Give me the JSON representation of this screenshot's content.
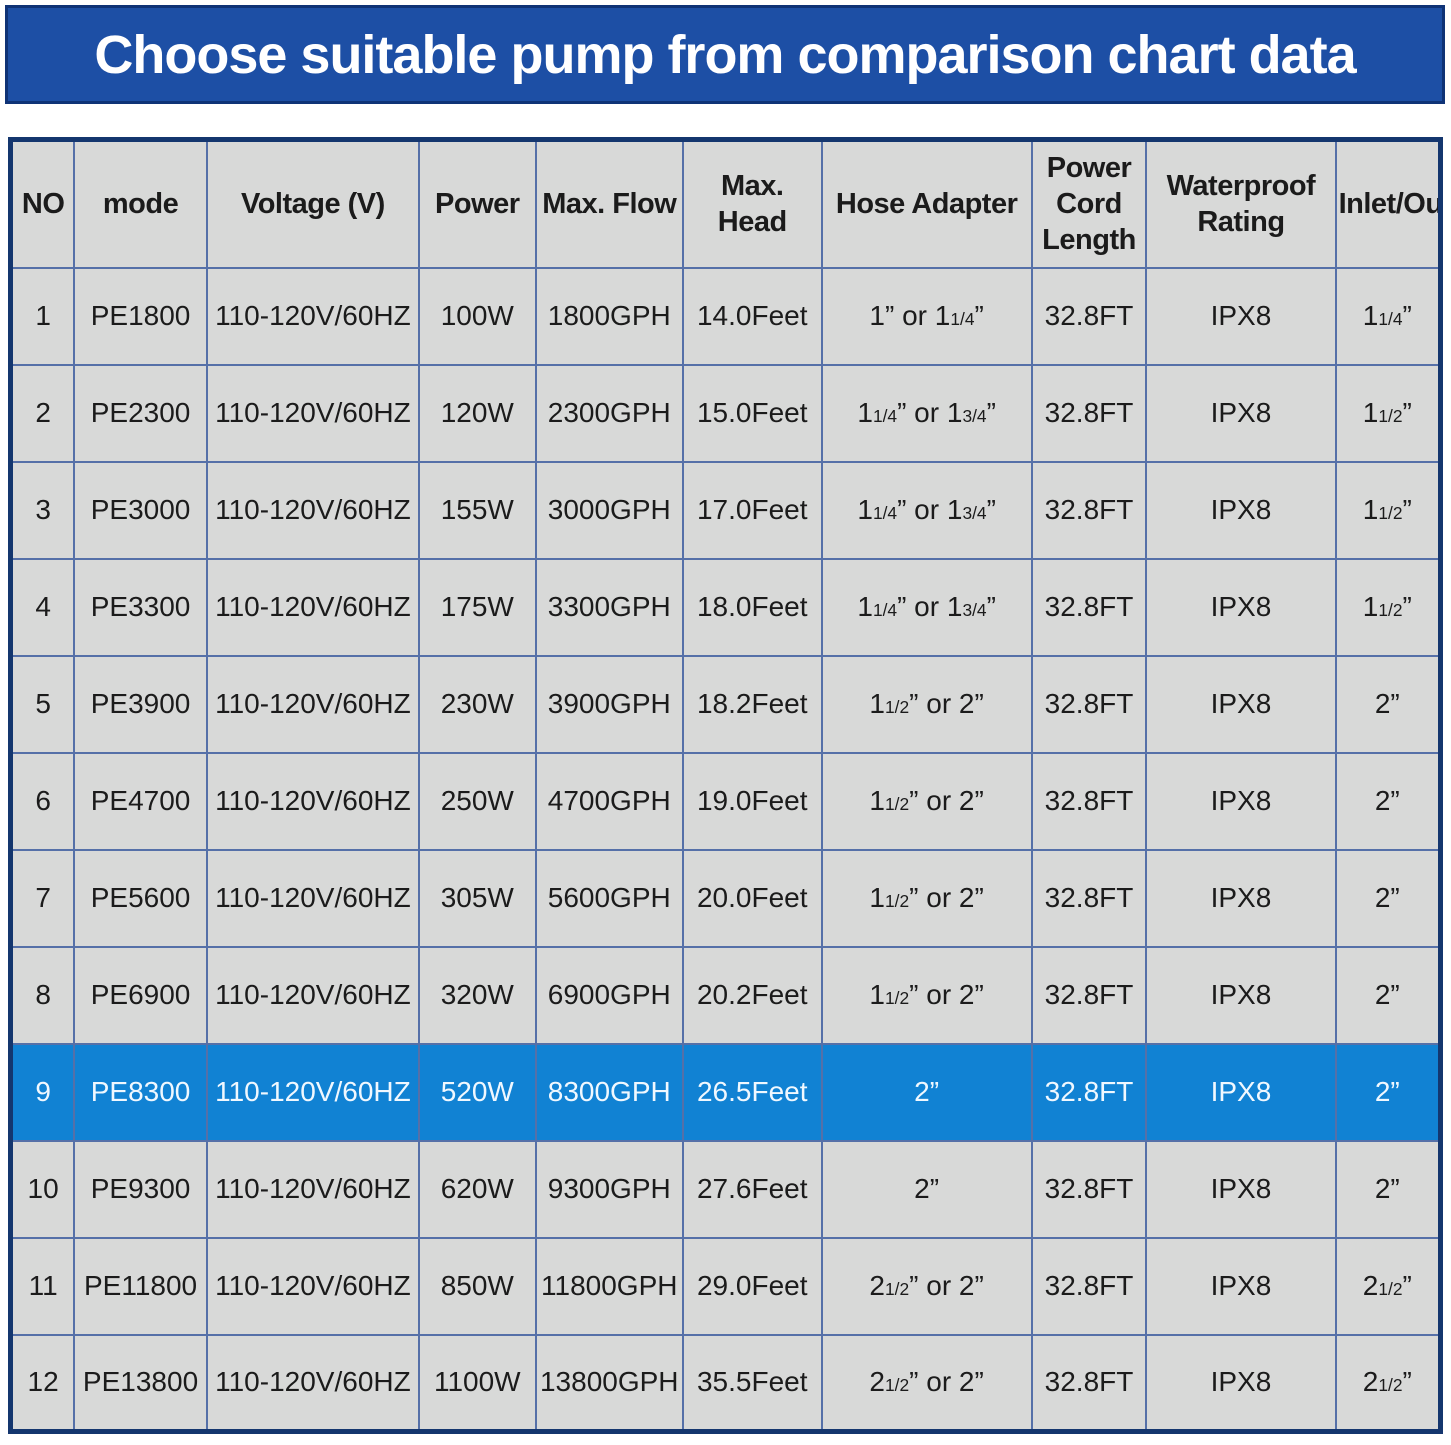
{
  "colors": {
    "page_bg": "#ffffff",
    "banner_bg": "#1d4fa5",
    "banner_border": "#0f3376",
    "banner_text": "#ffffff",
    "table_outer_border": "#14366e",
    "grid_line": "#5570a8",
    "cell_bg": "#d8d9d8",
    "cell_text": "#1b1b1b",
    "highlight_bg": "#1182d3",
    "highlight_text": "#f0f8ff"
  },
  "chart_data": {
    "type": "table",
    "title": "Choose suitable pump from comparison chart data",
    "columns": [
      "NO",
      "mode",
      "Voltage (V)",
      "Power",
      "Max. Flow",
      "Max. Head",
      "Hose Adapter",
      "Power Cord Length",
      "Waterproof Rating",
      "Inlet/Outlet"
    ],
    "column_keys": [
      "no",
      "mode",
      "voltage",
      "power",
      "max_flow",
      "max_head",
      "hose_adapter",
      "power_cord_length",
      "waterproof_rating",
      "inlet_outlet"
    ],
    "column_widths_pct": [
      4.46,
      9.27,
      14.84,
      8.15,
      10.31,
      9.69,
      14.7,
      8.01,
      13.24,
      7.33
    ],
    "rows": [
      [
        "1",
        "PE1800",
        "110-120V/60HZ",
        "100W",
        "1800GPH",
        "14.0Feet",
        "1” or 11/4”",
        "32.8FT",
        "IPX8",
        "11/4”"
      ],
      [
        "2",
        "PE2300",
        "110-120V/60HZ",
        "120W",
        "2300GPH",
        "15.0Feet",
        "11/4” or 13/4”",
        "32.8FT",
        "IPX8",
        "11/2”"
      ],
      [
        "3",
        "PE3000",
        "110-120V/60HZ",
        "155W",
        "3000GPH",
        "17.0Feet",
        "11/4” or 13/4”",
        "32.8FT",
        "IPX8",
        "11/2”"
      ],
      [
        "4",
        "PE3300",
        "110-120V/60HZ",
        "175W",
        "3300GPH",
        "18.0Feet",
        "11/4” or 13/4”",
        "32.8FT",
        "IPX8",
        "11/2”"
      ],
      [
        "5",
        "PE3900",
        "110-120V/60HZ",
        "230W",
        "3900GPH",
        "18.2Feet",
        "11/2” or 2”",
        "32.8FT",
        "IPX8",
        "2”"
      ],
      [
        "6",
        "PE4700",
        "110-120V/60HZ",
        "250W",
        "4700GPH",
        "19.0Feet",
        "11/2” or 2”",
        "32.8FT",
        "IPX8",
        "2”"
      ],
      [
        "7",
        "PE5600",
        "110-120V/60HZ",
        "305W",
        "5600GPH",
        "20.0Feet",
        "11/2” or 2”",
        "32.8FT",
        "IPX8",
        "2”"
      ],
      [
        "8",
        "PE6900",
        "110-120V/60HZ",
        "320W",
        "6900GPH",
        "20.2Feet",
        "11/2” or 2”",
        "32.8FT",
        "IPX8",
        "2”"
      ],
      [
        "9",
        "PE8300",
        "110-120V/60HZ",
        "520W",
        "8300GPH",
        "26.5Feet",
        "2”",
        "32.8FT",
        "IPX8",
        "2”"
      ],
      [
        "10",
        "PE9300",
        "110-120V/60HZ",
        "620W",
        "9300GPH",
        "27.6Feet",
        "2”",
        "32.8FT",
        "IPX8",
        "2”"
      ],
      [
        "11",
        "PE11800",
        "110-120V/60HZ",
        "850W",
        "11800GPH",
        "29.0Feet",
        "21/2” or 2”",
        "32.8FT",
        "IPX8",
        "21/2”"
      ],
      [
        "12",
        "PE13800",
        "110-120V/60HZ",
        "1100W",
        "13800GPH",
        "35.5Feet",
        "21/2” or 2”",
        "32.8FT",
        "IPX8",
        "21/2”"
      ]
    ],
    "highlighted_row_no": "9",
    "layout": {
      "grid": "on",
      "header_row": true,
      "n_rows": 12,
      "n_columns": 10
    }
  }
}
